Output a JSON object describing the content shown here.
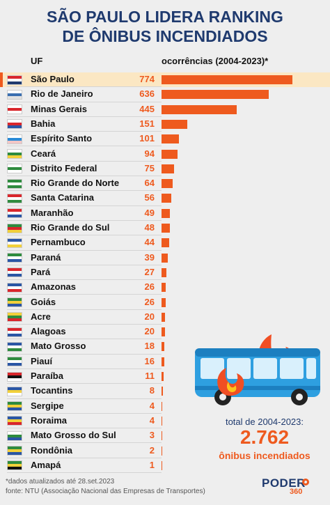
{
  "title_line1": "SÃO PAULO LIDERA RANKING",
  "title_line2": "DE ÔNIBUS INCENDIADOS",
  "chart_data": {
    "type": "bar",
    "orientation": "horizontal",
    "category_header": "UF",
    "value_header": "ocorrências (2004-2023)*",
    "categories": [
      "São Paulo",
      "Rio de Janeiro",
      "Minas Gerais",
      "Bahia",
      "Espírito Santo",
      "Ceará",
      "Distrito Federal",
      "Rio Grande do Norte",
      "Santa Catarina",
      "Maranhão",
      "Rio Grande do Sul",
      "Pernambuco",
      "Paraná",
      "Pará",
      "Amazonas",
      "Goiás",
      "Acre",
      "Alagoas",
      "Mato Grosso",
      "Piauí",
      "Paraíba",
      "Tocantins",
      "Sergipe",
      "Roraima",
      "Mato Grosso do Sul",
      "Rondônia",
      "Amapá"
    ],
    "values": [
      "774",
      "636",
      "445",
      "151",
      "101",
      "94",
      "75",
      "64",
      "56",
      "49",
      "48",
      "44",
      "39",
      "27",
      "26",
      "26",
      "20",
      "20",
      "18",
      "16",
      "11",
      "8",
      "4",
      "4",
      "3",
      "2",
      "1"
    ],
    "highlight": "São Paulo",
    "bar_color": "#ee5a1e"
  },
  "total": {
    "label": "total de 2004-2023:",
    "value": "2.762",
    "unit": "ônibus incendiados"
  },
  "footnote": "*dados atualizados até 28.set.2023",
  "source": "fonte: NTU (Associação Nacional das Empresas de Transportes)",
  "logo": {
    "main": "PODER",
    "sub": "360"
  },
  "colors": {
    "title": "#1f3a6e",
    "accent": "#ee5a1e",
    "highlight_row": "#fbe7c3",
    "bus": "#2e9fe0"
  }
}
